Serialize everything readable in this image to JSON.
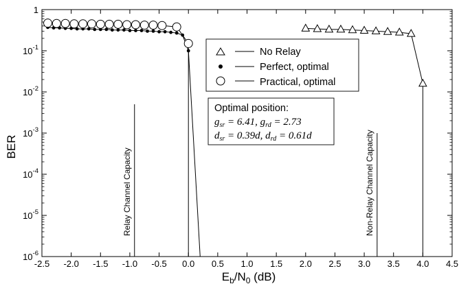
{
  "chart_data": {
    "type": "line",
    "xlabel": "E_b/N_0 (dB)",
    "ylabel": "BER",
    "xlim": [
      -2.5,
      4.5
    ],
    "ylim_log10": [
      -6,
      0
    ],
    "x_ticks": [
      "-2.5",
      "-2.0",
      "-1.5",
      "-1.0",
      "-0.5",
      "0.0",
      "0.5",
      "1.0",
      "1.5",
      "2.0",
      "2.5",
      "3.0",
      "3.5",
      "4.0",
      "4.5"
    ],
    "x_tick_values": [
      -2.5,
      -2.0,
      -1.5,
      -1.0,
      -0.5,
      0.0,
      0.5,
      1.0,
      1.5,
      2.0,
      2.5,
      3.0,
      3.5,
      4.0,
      4.5
    ],
    "y_ticks": [
      {
        "exp": 0,
        "label": "1"
      },
      {
        "exp": -1,
        "base": "10",
        "sup": "-1"
      },
      {
        "exp": -2,
        "base": "10",
        "sup": "-2"
      },
      {
        "exp": -3,
        "base": "10",
        "sup": "-3"
      },
      {
        "exp": -4,
        "base": "10",
        "sup": "-4"
      },
      {
        "exp": -5,
        "base": "10",
        "sup": "-5"
      },
      {
        "exp": -6,
        "base": "10",
        "sup": "-6"
      }
    ],
    "grid": false,
    "legend_position": "center-right",
    "series": [
      {
        "name": "No Relay",
        "marker": "triangle",
        "x": [
          2.0,
          2.2,
          2.4,
          2.6,
          2.8,
          3.0,
          3.2,
          3.4,
          3.6,
          3.8,
          4.0
        ],
        "y": [
          0.35,
          0.34,
          0.33,
          0.33,
          0.32,
          0.31,
          0.3,
          0.29,
          0.28,
          0.26,
          0.016
        ],
        "drop_to_x": 4.0
      },
      {
        "name": "Perfect, optimal",
        "marker": "dot",
        "x": [
          -2.4,
          -2.3,
          -2.2,
          -2.1,
          -2.0,
          -1.9,
          -1.8,
          -1.7,
          -1.6,
          -1.5,
          -1.4,
          -1.3,
          -1.2,
          -1.1,
          -1.0,
          -0.9,
          -0.8,
          -0.7,
          -0.6,
          -0.5,
          -0.4,
          -0.3,
          -0.2,
          -0.1,
          0.0
        ],
        "y": [
          0.37,
          0.36,
          0.36,
          0.35,
          0.35,
          0.34,
          0.34,
          0.34,
          0.33,
          0.33,
          0.33,
          0.32,
          0.32,
          0.32,
          0.31,
          0.31,
          0.31,
          0.3,
          0.3,
          0.29,
          0.29,
          0.28,
          0.27,
          0.24,
          0.1
        ],
        "drop_to_x": 0.2
      },
      {
        "name": "Practical, optimal",
        "marker": "circle",
        "x": [
          -2.4,
          -2.25,
          -2.1,
          -1.95,
          -1.8,
          -1.65,
          -1.5,
          -1.35,
          -1.2,
          -1.05,
          -0.9,
          -0.75,
          -0.6,
          -0.45,
          -0.2,
          0.0
        ],
        "y": [
          0.47,
          0.46,
          0.46,
          0.45,
          0.45,
          0.45,
          0.44,
          0.44,
          0.44,
          0.43,
          0.43,
          0.42,
          0.42,
          0.41,
          0.38,
          0.15
        ],
        "drop_to_x": 0.0
      }
    ],
    "vertical_markers": [
      {
        "label": "Relay Channel Capacity",
        "x": -0.92,
        "y_top_exp": -2.3
      },
      {
        "label": "Non-Relay Channel Capacity",
        "x": 3.22,
        "y_top_exp": -3.0
      }
    ],
    "annotation": {
      "title": "Optimal position:",
      "line1_a": "g",
      "line1_a_sub": "sr",
      "line1_a_val": " = 6.41, ",
      "line1_b": "g",
      "line1_b_sub": "rd",
      "line1_b_val": " = 2.73",
      "line2_a": "d",
      "line2_a_sub": "sr",
      "line2_a_val": " = 0.39d, ",
      "line2_b": "d",
      "line2_b_sub": "rd",
      "line2_b_val": " = 0.61d"
    },
    "colors": {
      "line": "#000000",
      "marker_fill_open": "#ffffff",
      "marker_fill_solid": "#000000"
    }
  }
}
